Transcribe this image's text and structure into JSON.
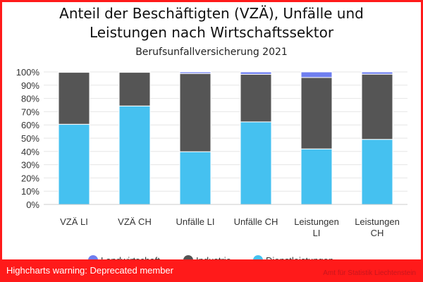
{
  "chart_data": {
    "type": "bar",
    "stacked": "percent",
    "title": "Anteil der Beschäftigten (VZÄ), Unfälle und Leistungen nach Wirtschaftssektor",
    "title_lines": [
      "Anteil der Beschäftigten (VZÄ), Unfälle und",
      "Leistungen nach Wirtschaftssektor"
    ],
    "subtitle": "Berufsunfallversicherung 2021",
    "categories": [
      "VZÄ LI",
      "VZÄ CH",
      "Unfälle LI",
      "Unfälle CH",
      "Leistungen LI",
      "Leistungen CH"
    ],
    "series": [
      {
        "name": "Landwirtschaft",
        "color": "#6f7ff0",
        "values": [
          0.3,
          0.3,
          1.2,
          1.8,
          4.2,
          1.7
        ]
      },
      {
        "name": "Industrie",
        "color": "#555555",
        "values": [
          39.2,
          25.4,
          59.0,
          35.9,
          53.9,
          49.2
        ]
      },
      {
        "name": "Dienstleistungen",
        "color": "#45c1f0",
        "values": [
          60.5,
          74.3,
          39.8,
          62.3,
          41.9,
          49.1
        ]
      }
    ],
    "ylim": [
      0,
      100
    ],
    "yticks": [
      "0%",
      "10%",
      "20%",
      "30%",
      "40%",
      "50%",
      "60%",
      "70%",
      "80%",
      "90%",
      "100%"
    ],
    "grid": true,
    "legend_position": "bottom"
  },
  "warning": "Highcharts warning: Deprecated member",
  "credits": "Amt für Statistik Liechtenstein"
}
